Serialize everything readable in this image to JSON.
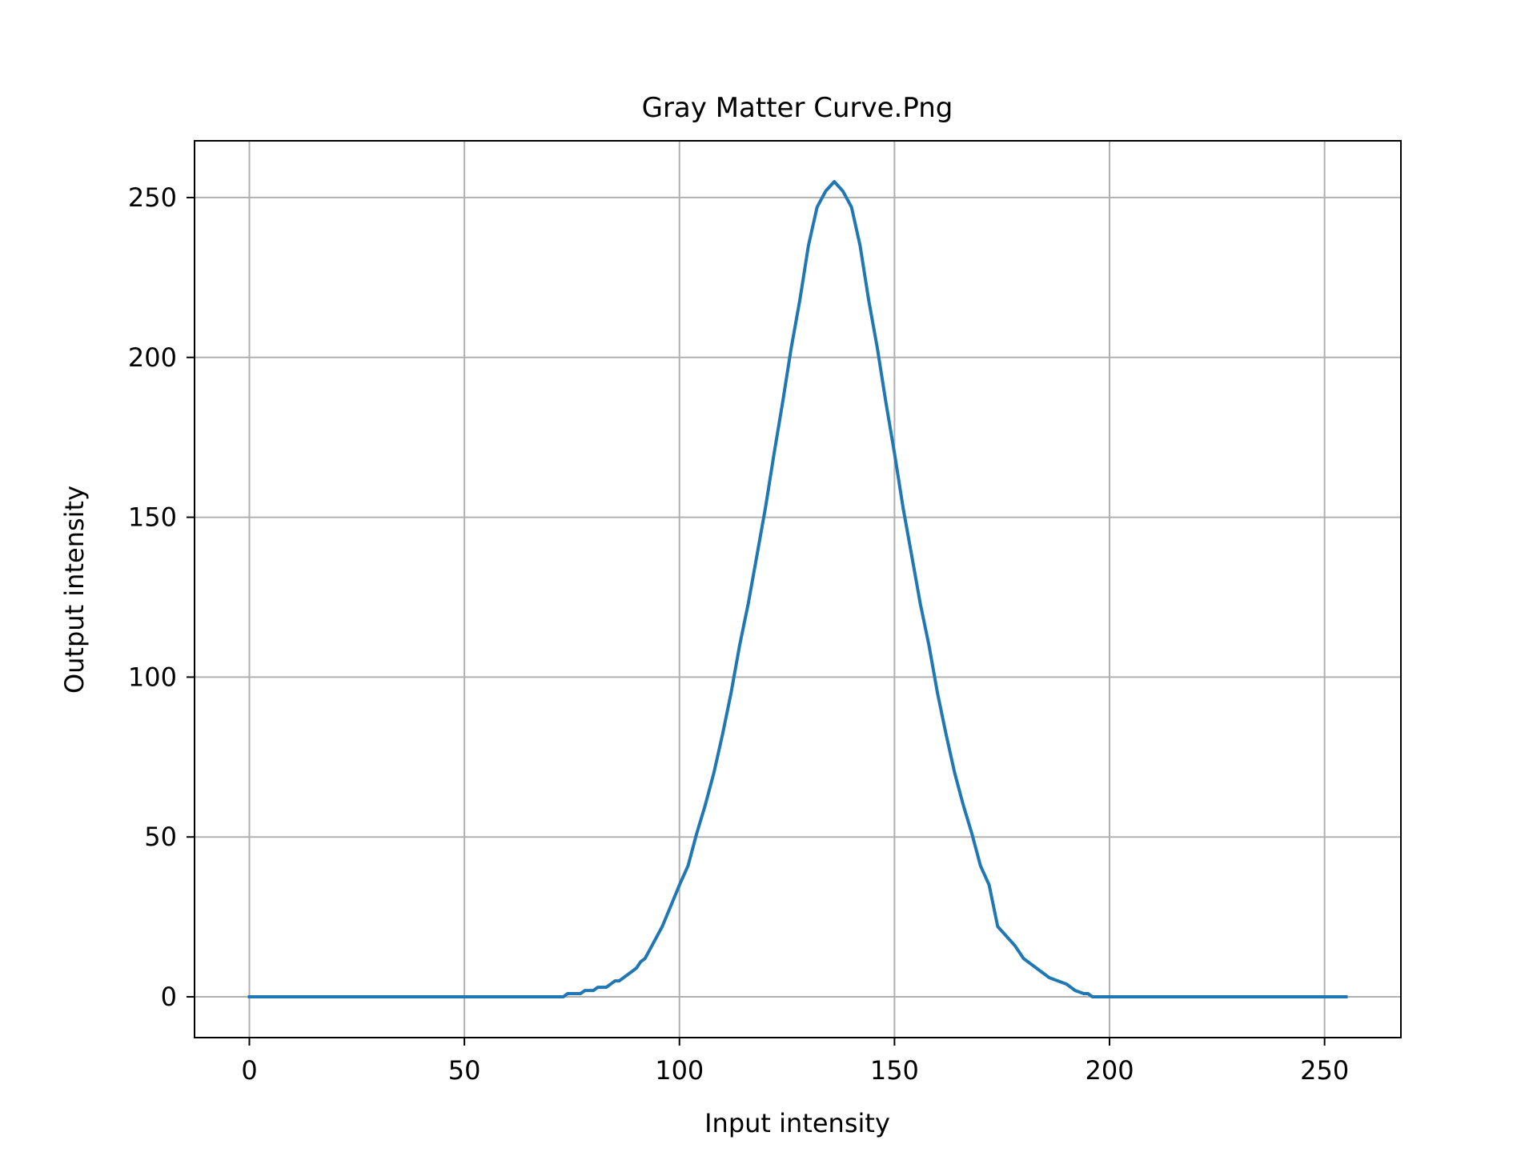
{
  "chart_data": {
    "type": "line",
    "title": "Gray Matter Curve.Png",
    "xlabel": "Input intensity",
    "ylabel": "Output intensity",
    "xlim": [
      -12.75,
      267.75
    ],
    "ylim": [
      -12.75,
      267.75
    ],
    "xticks": [
      0,
      50,
      100,
      150,
      200,
      250
    ],
    "yticks": [
      0,
      50,
      100,
      150,
      200,
      250
    ],
    "grid": true,
    "line_color": "#1f77b4",
    "series": [
      {
        "x": [
          0,
          73,
          74,
          77,
          78,
          80,
          81,
          83,
          84,
          85,
          86,
          88,
          89,
          90,
          91,
          92,
          96,
          100,
          102,
          104,
          106,
          108,
          110,
          112,
          114,
          116,
          118,
          120,
          122,
          124,
          126,
          128,
          130,
          132,
          134,
          136,
          138,
          140,
          142,
          144,
          146,
          148,
          150,
          152,
          154,
          156,
          158,
          160,
          162,
          164,
          166,
          168,
          170,
          172,
          174,
          176,
          178,
          180,
          182,
          184,
          186,
          188,
          190,
          191,
          192,
          194,
          195,
          196,
          198,
          199,
          200,
          202,
          203,
          206,
          207,
          255
        ],
        "values": [
          0,
          0,
          1,
          1,
          2,
          2,
          3,
          3,
          4,
          5,
          5,
          7,
          8,
          9,
          11,
          12,
          22,
          35,
          41,
          51,
          60,
          70,
          82,
          95,
          110,
          123,
          138,
          153,
          170,
          186,
          203,
          218,
          235,
          247,
          252,
          255,
          252,
          247,
          235,
          218,
          203,
          186,
          170,
          153,
          138,
          123,
          110,
          95,
          82,
          70,
          60,
          51,
          41,
          35,
          22,
          19,
          16,
          12,
          10,
          8,
          6,
          5,
          4,
          3,
          2,
          1,
          1,
          0,
          0,
          0,
          0,
          0,
          0,
          0,
          0,
          0
        ]
      }
    ]
  }
}
